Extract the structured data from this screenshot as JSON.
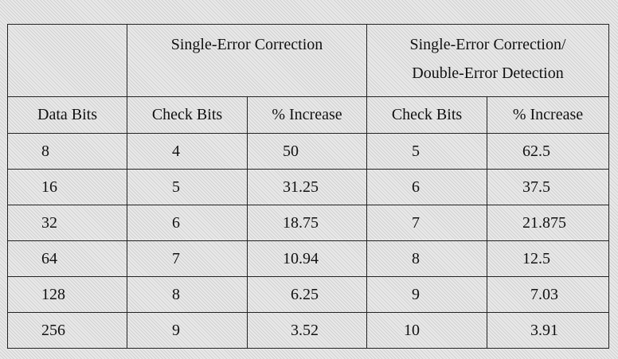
{
  "table": {
    "group_headers": {
      "sec": "Single-Error Correction",
      "secded": "Single-Error Correction/\nDouble-Error Detection"
    },
    "column_headers": [
      "Data Bits",
      "Check Bits",
      "% Increase",
      "Check Bits",
      "% Increase"
    ],
    "rows": [
      [
        "8",
        "4",
        "50",
        "5",
        "62.5"
      ],
      [
        "16",
        "5",
        "31.25",
        "6",
        "37.5"
      ],
      [
        "32",
        "6",
        "18.75",
        "7",
        "21.875"
      ],
      [
        "64",
        "7",
        "10.94",
        "8",
        "12.5"
      ],
      [
        "128",
        "8",
        "6.25",
        "9",
        "7.03"
      ],
      [
        "256",
        "9",
        "3.52",
        "10",
        "3.91"
      ]
    ]
  }
}
